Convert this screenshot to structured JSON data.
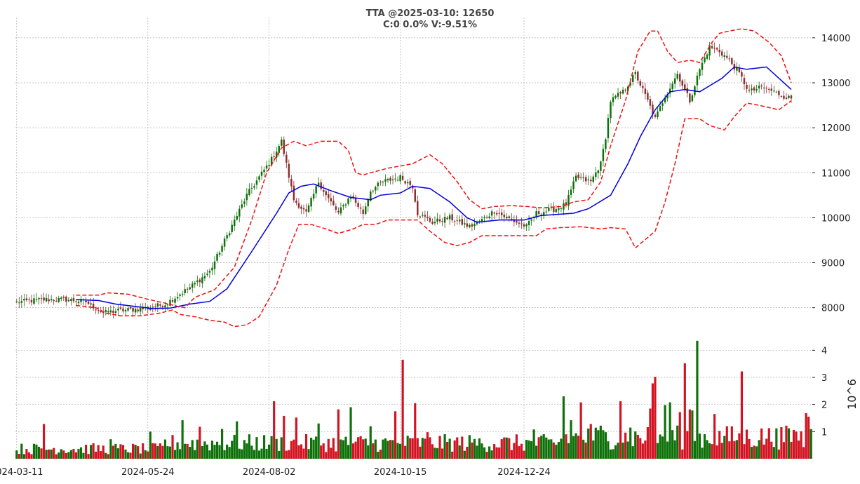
{
  "chart_data": [
    {
      "type": "candlestick",
      "title": "TTA @2025-03-10: 12650",
      "subtitle": "C:0 0.0% V:-9.51%",
      "x_ticks": [
        "2024-03-11",
        "2024-05-24",
        "2024-08-02",
        "2024-10-15",
        "2024-12-24"
      ],
      "y_ticks": [
        8000,
        9000,
        10000,
        11000,
        12000,
        13000,
        14000
      ],
      "ylim": [
        7480,
        14450
      ],
      "grid": true,
      "y_axis_side": "right",
      "overlays": [
        "20-day moving average (blue solid)",
        "upper/lower Bollinger bands (red dashed)"
      ],
      "anchors_close": [
        [
          0,
          8120
        ],
        [
          10,
          8180
        ],
        [
          20,
          8180
        ],
        [
          28,
          8130
        ],
        [
          35,
          7880
        ],
        [
          40,
          7930
        ],
        [
          52,
          7980
        ],
        [
          60,
          8080
        ],
        [
          70,
          8450
        ],
        [
          78,
          8800
        ],
        [
          85,
          9600
        ],
        [
          93,
          10500
        ],
        [
          98,
          10900
        ],
        [
          103,
          11300
        ],
        [
          107,
          11700
        ],
        [
          112,
          10400
        ],
        [
          117,
          10100
        ],
        [
          122,
          10800
        ],
        [
          125,
          10500
        ],
        [
          130,
          10100
        ],
        [
          135,
          10500
        ],
        [
          140,
          10100
        ],
        [
          143,
          10600
        ],
        [
          148,
          10800
        ],
        [
          155,
          10900
        ],
        [
          160,
          10700
        ],
        [
          162,
          10100
        ],
        [
          168,
          9900
        ],
        [
          175,
          10000
        ],
        [
          183,
          9800
        ],
        [
          188,
          9950
        ],
        [
          193,
          10150
        ],
        [
          198,
          10000
        ],
        [
          206,
          9800
        ],
        [
          210,
          10100
        ],
        [
          218,
          10200
        ],
        [
          222,
          10300
        ],
        [
          226,
          10900
        ],
        [
          232,
          10800
        ],
        [
          236,
          11200
        ],
        [
          238,
          11800
        ],
        [
          240,
          12600
        ],
        [
          245,
          12800
        ],
        [
          250,
          13200
        ],
        [
          255,
          12600
        ],
        [
          258,
          12200
        ],
        [
          262,
          12700
        ],
        [
          267,
          13200
        ],
        [
          272,
          12600
        ],
        [
          276,
          13300
        ],
        [
          280,
          13800
        ],
        [
          284,
          13700
        ],
        [
          288,
          13500
        ],
        [
          292,
          13200
        ],
        [
          296,
          12800
        ],
        [
          301,
          12900
        ],
        [
          306,
          12800
        ],
        [
          310,
          12700
        ],
        [
          313,
          12650
        ]
      ],
      "ma20_points": [
        [
          24,
          8180
        ],
        [
          33,
          8160
        ],
        [
          40,
          8080
        ],
        [
          55,
          7980
        ],
        [
          62,
          7990
        ],
        [
          70,
          8080
        ],
        [
          78,
          8140
        ],
        [
          85,
          8420
        ],
        [
          95,
          9250
        ],
        [
          105,
          10100
        ],
        [
          110,
          10550
        ],
        [
          115,
          10700
        ],
        [
          120,
          10750
        ],
        [
          127,
          10600
        ],
        [
          135,
          10450
        ],
        [
          143,
          10400
        ],
        [
          147,
          10500
        ],
        [
          155,
          10550
        ],
        [
          160,
          10700
        ],
        [
          167,
          10650
        ],
        [
          175,
          10350
        ],
        [
          182,
          10000
        ],
        [
          186,
          9900
        ],
        [
          195,
          9950
        ],
        [
          205,
          9950
        ],
        [
          212,
          10050
        ],
        [
          225,
          10100
        ],
        [
          231,
          10200
        ],
        [
          240,
          10500
        ],
        [
          247,
          11200
        ],
        [
          252,
          11800
        ],
        [
          258,
          12400
        ],
        [
          264,
          12800
        ],
        [
          270,
          12850
        ],
        [
          276,
          12800
        ],
        [
          285,
          13100
        ],
        [
          290,
          13350
        ],
        [
          295,
          13300
        ],
        [
          303,
          13350
        ],
        [
          313,
          12850
        ]
      ],
      "upper_band_points": [
        [
          24,
          8280
        ],
        [
          33,
          8280
        ],
        [
          37,
          8330
        ],
        [
          45,
          8300
        ],
        [
          52,
          8200
        ],
        [
          60,
          8100
        ],
        [
          65,
          8030
        ],
        [
          68,
          8000
        ],
        [
          72,
          8230
        ],
        [
          80,
          8400
        ],
        [
          88,
          8900
        ],
        [
          95,
          9950
        ],
        [
          101,
          11000
        ],
        [
          107,
          11550
        ],
        [
          112,
          11700
        ],
        [
          117,
          11600
        ],
        [
          123,
          11700
        ],
        [
          130,
          11700
        ],
        [
          134,
          11500
        ],
        [
          137,
          11000
        ],
        [
          140,
          10950
        ],
        [
          143,
          11000
        ],
        [
          150,
          11100
        ],
        [
          155,
          11150
        ],
        [
          160,
          11200
        ],
        [
          167,
          11400
        ],
        [
          172,
          11200
        ],
        [
          178,
          10800
        ],
        [
          183,
          10400
        ],
        [
          188,
          10200
        ],
        [
          193,
          10250
        ],
        [
          200,
          10270
        ],
        [
          206,
          10250
        ],
        [
          212,
          10220
        ],
        [
          220,
          10250
        ],
        [
          225,
          10350
        ],
        [
          231,
          10400
        ],
        [
          236,
          10800
        ],
        [
          240,
          11600
        ],
        [
          246,
          12600
        ],
        [
          251,
          13700
        ],
        [
          256,
          14150
        ],
        [
          259,
          14150
        ],
        [
          263,
          13700
        ],
        [
          267,
          13450
        ],
        [
          272,
          13500
        ],
        [
          276,
          13450
        ],
        [
          281,
          13900
        ],
        [
          284,
          14100
        ],
        [
          288,
          14150
        ],
        [
          293,
          14200
        ],
        [
          298,
          14150
        ],
        [
          304,
          13900
        ],
        [
          309,
          13600
        ],
        [
          313,
          13000
        ]
      ],
      "lower_band_points": [
        [
          24,
          8050
        ],
        [
          32,
          8000
        ],
        [
          36,
          7880
        ],
        [
          42,
          7820
        ],
        [
          50,
          7820
        ],
        [
          58,
          7880
        ],
        [
          63,
          7950
        ],
        [
          66,
          7850
        ],
        [
          72,
          7800
        ],
        [
          78,
          7720
        ],
        [
          84,
          7680
        ],
        [
          88,
          7580
        ],
        [
          93,
          7620
        ],
        [
          98,
          7800
        ],
        [
          105,
          8500
        ],
        [
          110,
          9300
        ],
        [
          114,
          9850
        ],
        [
          119,
          9850
        ],
        [
          125,
          9750
        ],
        [
          130,
          9650
        ],
        [
          136,
          9750
        ],
        [
          140,
          9850
        ],
        [
          145,
          9850
        ],
        [
          150,
          9950
        ],
        [
          156,
          9950
        ],
        [
          162,
          9950
        ],
        [
          167,
          9700
        ],
        [
          173,
          9450
        ],
        [
          178,
          9380
        ],
        [
          183,
          9450
        ],
        [
          188,
          9600
        ],
        [
          195,
          9600
        ],
        [
          210,
          9600
        ],
        [
          214,
          9750
        ],
        [
          220,
          9780
        ],
        [
          228,
          9800
        ],
        [
          236,
          9750
        ],
        [
          240,
          9780
        ],
        [
          246,
          9750
        ],
        [
          250,
          9330
        ],
        [
          258,
          9700
        ],
        [
          262,
          10350
        ],
        [
          266,
          11200
        ],
        [
          270,
          12200
        ],
        [
          276,
          12200
        ],
        [
          280,
          12050
        ],
        [
          286,
          11950
        ],
        [
          290,
          12250
        ],
        [
          295,
          12550
        ],
        [
          300,
          12500
        ],
        [
          308,
          12400
        ],
        [
          313,
          12600
        ]
      ]
    },
    {
      "type": "bar",
      "ylabel": "10^6",
      "y_ticks": [
        1,
        2,
        3,
        4
      ],
      "ylim": [
        0,
        4.5
      ],
      "grid": true,
      "y_axis_side": "right",
      "series_colors": {
        "up": "#0d7008",
        "down": "#d21321"
      },
      "spikes": [
        [
          11,
          1.28
        ],
        [
          38,
          0.72
        ],
        [
          54,
          1.0
        ],
        [
          67,
          1.42
        ],
        [
          74,
          1.18
        ],
        [
          83,
          1.1
        ],
        [
          89,
          1.38
        ],
        [
          104,
          2.12
        ],
        [
          108,
          1.58
        ],
        [
          113,
          1.52
        ],
        [
          122,
          1.3
        ],
        [
          130,
          1.82
        ],
        [
          135,
          1.9
        ],
        [
          143,
          1.2
        ],
        [
          153,
          1.75
        ],
        [
          156,
          3.65
        ],
        [
          161,
          2.05
        ],
        [
          166,
          0.98
        ],
        [
          184,
          0.6
        ],
        [
          209,
          1.08
        ],
        [
          221,
          2.3
        ],
        [
          224,
          1.42
        ],
        [
          228,
          2.08
        ],
        [
          232,
          1.28
        ],
        [
          236,
          1.22
        ],
        [
          244,
          2.12
        ],
        [
          248,
          1.15
        ],
        [
          256,
          1.85
        ],
        [
          257,
          2.78
        ],
        [
          258,
          3.02
        ],
        [
          262,
          1.98
        ],
        [
          264,
          2.08
        ],
        [
          268,
          1.72
        ],
        [
          270,
          3.52
        ],
        [
          272,
          1.82
        ],
        [
          273,
          1.78
        ],
        [
          275,
          4.35
        ],
        [
          282,
          1.65
        ],
        [
          293,
          3.22
        ],
        [
          307,
          1.12
        ],
        [
          319,
          1.68
        ],
        [
          320,
          1.55
        ]
      ]
    }
  ],
  "colors": {
    "up": "#0d7008",
    "down": "#8b2f2f",
    "volume_down": "#d21321",
    "ma": "#0000dd",
    "bands": "#ee1111",
    "title": "#444444",
    "grid": "#b0b0b0"
  }
}
